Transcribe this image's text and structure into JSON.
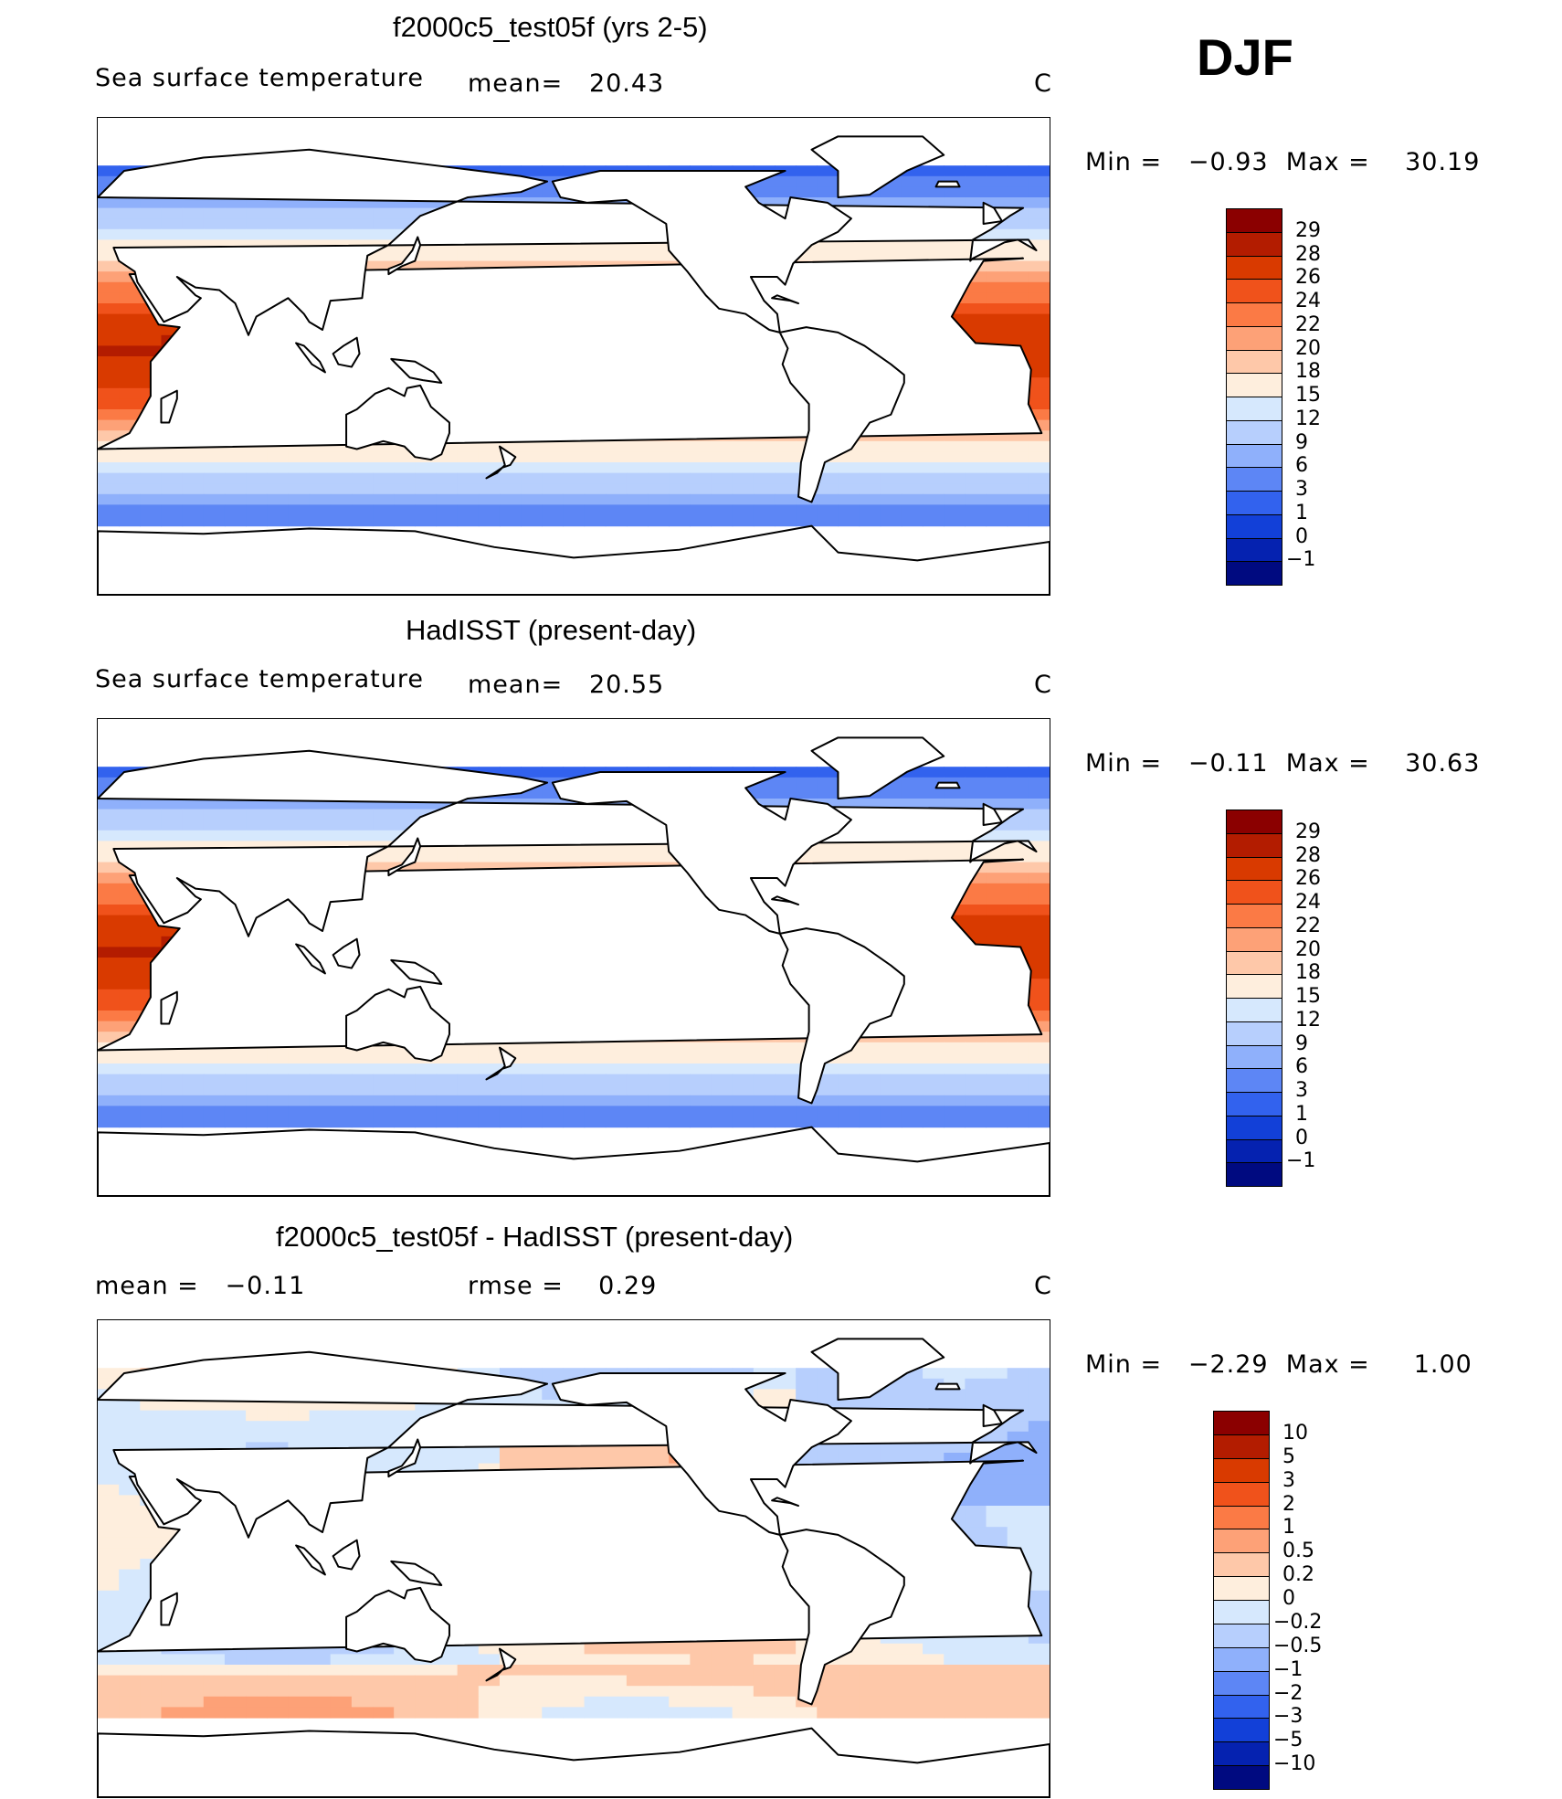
{
  "season": "DJF",
  "panels": [
    {
      "id": "model",
      "title": "f2000c5_test05f (yrs 2-5)",
      "left_label": "Sea surface temperature",
      "center_label": "mean=   20.43",
      "units": "C",
      "minmax": "Min =   −0.93  Max =    30.19",
      "colorbar_labels": [
        "29",
        "28",
        "26",
        "24",
        "22",
        "20",
        "18",
        "15",
        "12",
        "9",
        "6",
        "3",
        "1",
        "0",
        "−1"
      ],
      "colorbar_colors": [
        "#8b0000",
        "#b31c00",
        "#d93a00",
        "#f0521b",
        "#fb7a45",
        "#fda177",
        "#fec8a9",
        "#feeedd",
        "#d6e8fd",
        "#b7cffd",
        "#8fb0fb",
        "#5d86f5",
        "#3262ee",
        "#1240d8",
        "#0522b0",
        "#000a80"
      ]
    },
    {
      "id": "obs",
      "title": "HadISST (present-day)",
      "left_label": "Sea surface temperature",
      "center_label": "mean=   20.55",
      "units": "C",
      "minmax": "Min =   −0.11  Max =    30.63",
      "colorbar_labels": [
        "29",
        "28",
        "26",
        "24",
        "22",
        "20",
        "18",
        "15",
        "12",
        "9",
        "6",
        "3",
        "1",
        "0",
        "−1"
      ],
      "colorbar_colors": [
        "#8b0000",
        "#b31c00",
        "#d93a00",
        "#f0521b",
        "#fb7a45",
        "#fda177",
        "#fec8a9",
        "#feeedd",
        "#d6e8fd",
        "#b7cffd",
        "#8fb0fb",
        "#5d86f5",
        "#3262ee",
        "#1240d8",
        "#0522b0",
        "#000a80"
      ]
    },
    {
      "id": "diff",
      "title": "f2000c5_test05f - HadISST (present-day)",
      "left_label": "mean =   −0.11",
      "center_label": "rmse =    0.29",
      "units": "C",
      "minmax": "Min =   −2.29  Max =     1.00",
      "colorbar_labels": [
        "10",
        "5",
        "3",
        "2",
        "1",
        "0.5",
        "0.2",
        "0",
        "−0.2",
        "−0.5",
        "−1",
        "−2",
        "−3",
        "−5",
        "−10"
      ],
      "colorbar_colors": [
        "#8b0000",
        "#b31c00",
        "#d93a00",
        "#f0521b",
        "#fb7a45",
        "#fda177",
        "#fec8a9",
        "#feeedd",
        "#d6e8fd",
        "#b7cffd",
        "#8fb0fb",
        "#5d86f5",
        "#3262ee",
        "#1240d8",
        "#0522b0",
        "#000a80"
      ]
    }
  ]
}
